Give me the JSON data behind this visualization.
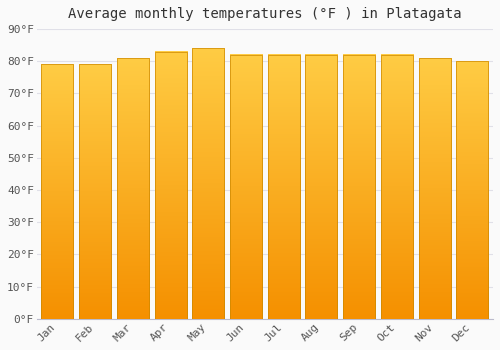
{
  "title": "Average monthly temperatures (°F ) in Platagata",
  "months": [
    "Jan",
    "Feb",
    "Mar",
    "Apr",
    "May",
    "Jun",
    "Jul",
    "Aug",
    "Sep",
    "Oct",
    "Nov",
    "Dec"
  ],
  "values": [
    79,
    79,
    81,
    83,
    84,
    82,
    82,
    82,
    82,
    82,
    81,
    80
  ],
  "bar_color": "#FFA500",
  "bar_color_top": "#FFCC44",
  "bar_color_bottom": "#F59000",
  "background_color": "#FAFAFA",
  "grid_color": "#E0E0E8",
  "ylim": [
    0,
    90
  ],
  "yticks": [
    0,
    10,
    20,
    30,
    40,
    50,
    60,
    70,
    80,
    90
  ],
  "ytick_labels": [
    "0°F",
    "10°F",
    "20°F",
    "30°F",
    "40°F",
    "50°F",
    "60°F",
    "70°F",
    "80°F",
    "90°F"
  ],
  "title_fontsize": 10,
  "tick_fontsize": 8,
  "font_family": "monospace"
}
